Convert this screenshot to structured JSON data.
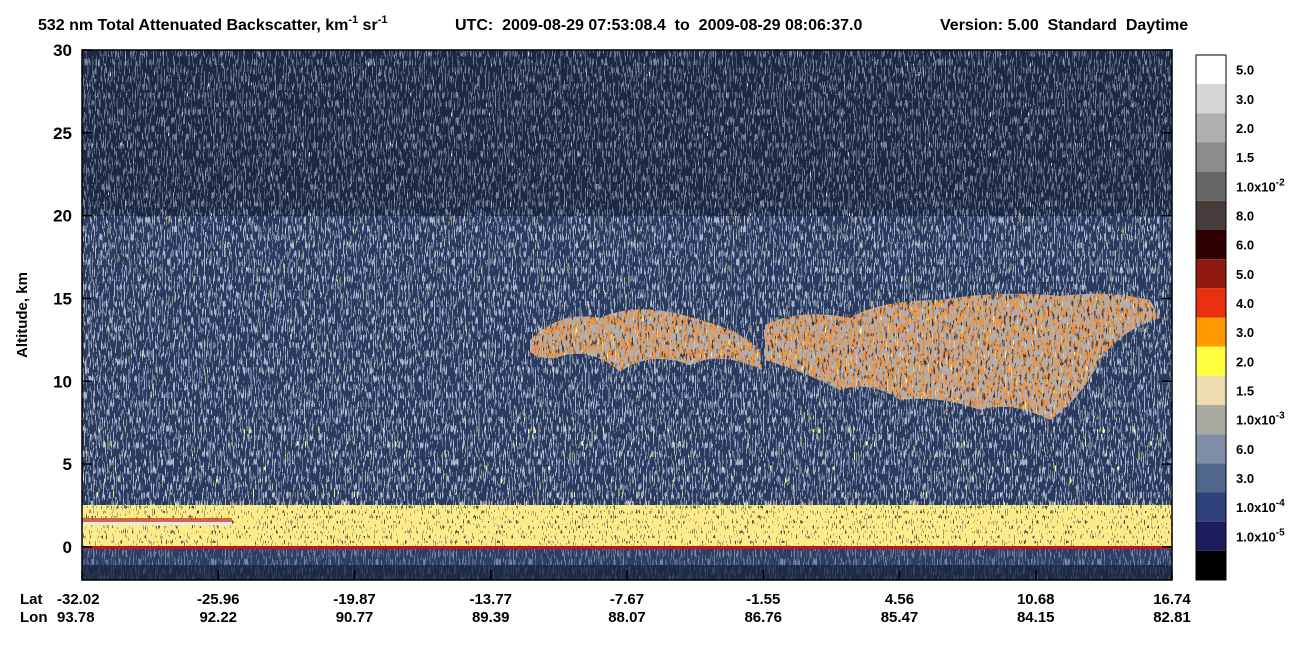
{
  "chart_data": {
    "type": "curtain",
    "title_parts": [
      "532 nm Total Attenuated Backscatter, km",
      "-1",
      " sr",
      "-1"
    ],
    "time_range": "UTC:  2009-08-29 07:53:08.4  to  2009-08-29 08:06:37.0",
    "version": "Version: 5.00  Standard  Daytime",
    "ylabel": "Altitude, km",
    "ylim": [
      -2,
      30
    ],
    "yticks": [
      0,
      5,
      10,
      15,
      20,
      25,
      30
    ],
    "xtick_rows": [
      {
        "name": "Lat",
        "values": [
          -32.02,
          -25.96,
          -19.87,
          -13.77,
          -7.67,
          -1.55,
          4.56,
          10.68,
          16.74
        ]
      },
      {
        "name": "Lon",
        "values": [
          93.78,
          92.22,
          90.77,
          89.39,
          88.07,
          86.76,
          85.47,
          84.15,
          82.81
        ]
      }
    ],
    "colorbar": {
      "colors": [
        "#ffffff",
        "#d6d6d6",
        "#b0b0b0",
        "#8c8c8c",
        "#666666",
        "#463c3a",
        "#2e0202",
        "#8e1a12",
        "#e8300c",
        "#ff9a00",
        "#ffff40",
        "#ecdcb0",
        "#a9aba2",
        "#7d8ea6",
        "#4f668a",
        "#2e417a",
        "#1c1c5e",
        "#000000"
      ],
      "labels": [
        "5.0",
        "3.0",
        "2.0",
        "1.5",
        {
          "text": "1.0x10",
          "exponent": "-2"
        },
        "8.0",
        "6.0",
        "5.0",
        "4.0",
        "3.0",
        "2.0",
        "1.5",
        {
          "text": "1.0x10",
          "exponent": "-3"
        },
        "6.0",
        "3.0",
        {
          "text": "1.0x10",
          "exponent": "-4"
        },
        {
          "text": "1.0x10",
          "exponent": "-5"
        }
      ]
    }
  }
}
